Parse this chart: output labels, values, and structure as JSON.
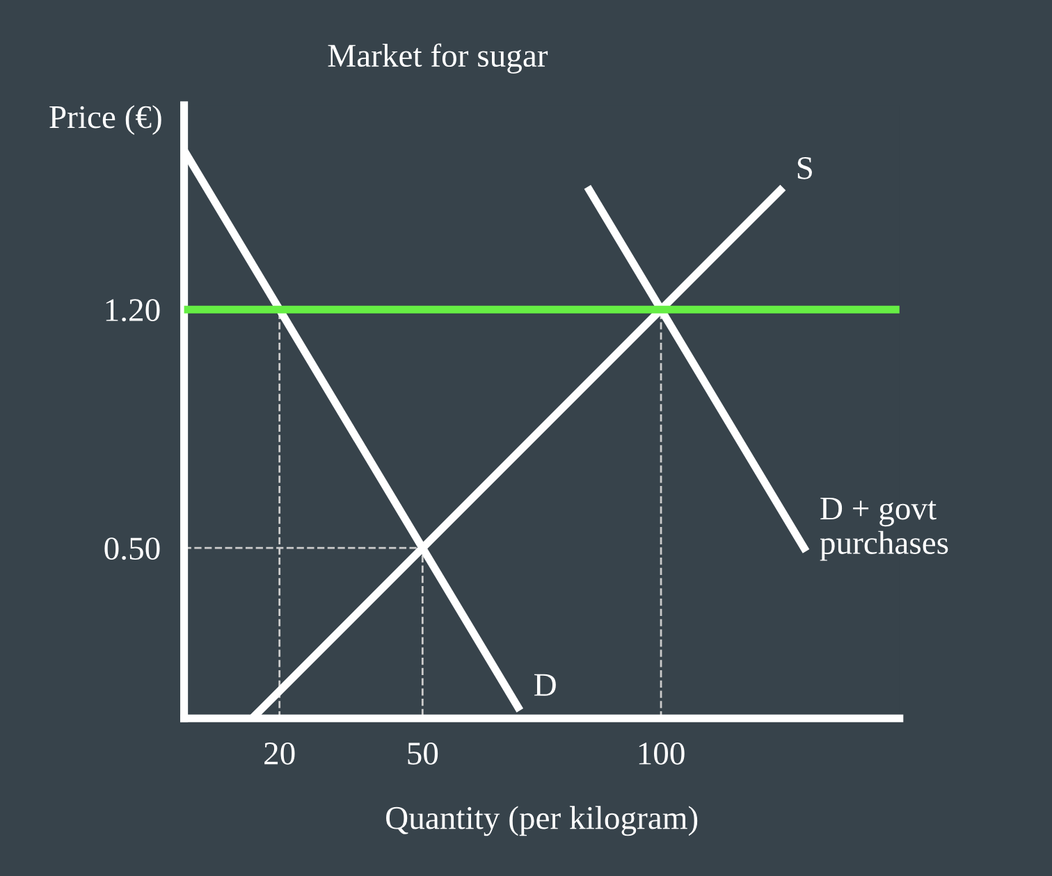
{
  "chart_data": {
    "type": "line",
    "title": "Market for sugar",
    "xlabel": "Quantity (per kilogram)",
    "ylabel": "Price (€)",
    "xlim": [
      0,
      150
    ],
    "ylim": [
      0,
      1.8
    ],
    "xticks": [
      20,
      50,
      100
    ],
    "yticks": [
      {
        "value": 0.5,
        "label": "0.50"
      },
      {
        "value": 1.2,
        "label": "1.20"
      }
    ],
    "grid": false,
    "legend": false,
    "marker": "none",
    "series": [
      {
        "name": "D",
        "color": "#ffffff",
        "x": [
          0,
          70
        ],
        "values": [
          1.667,
          0.033
        ],
        "line_style": "solid"
      },
      {
        "name": "S",
        "color": "#ffffff",
        "x": [
          15,
          125
        ],
        "values": [
          0.01,
          1.55
        ],
        "line_style": "solid"
      },
      {
        "name": "D + govt\npurchases",
        "color": "#ffffff",
        "x": [
          85,
          130
        ],
        "values": [
          1.55,
          0.5
        ],
        "line_style": "solid"
      },
      {
        "color": "#cccccc",
        "x": [
          20,
          20
        ],
        "values": [
          0,
          1.2
        ],
        "line_style": "dashed"
      },
      {
        "color": "#cccccc",
        "x": [
          0,
          50,
          50
        ],
        "values": [
          0.5,
          0.5,
          0
        ],
        "line_style": "dashed"
      },
      {
        "color": "#cccccc",
        "x": [
          100,
          100
        ],
        "values": [
          0,
          1.2
        ],
        "line_style": "dashed"
      }
    ],
    "ref_lines": [
      {
        "axis": "y",
        "value": 1.2,
        "color": "#66ee44",
        "line_style": "solid"
      }
    ]
  }
}
